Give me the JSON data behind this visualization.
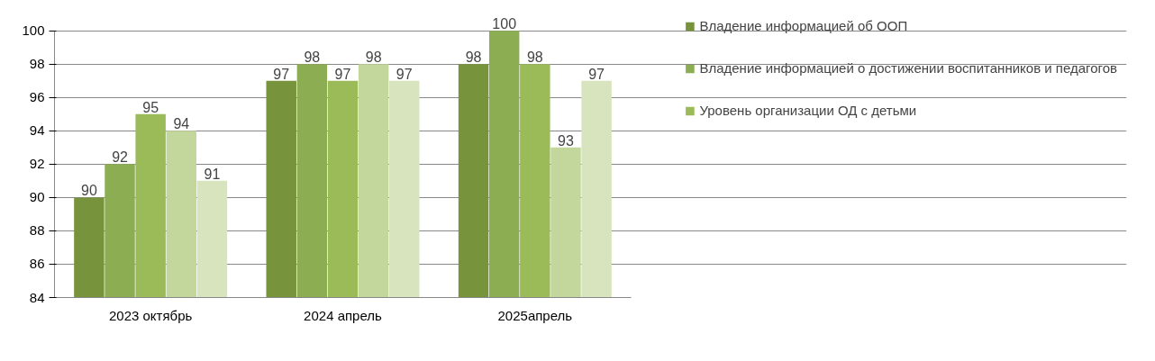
{
  "chart_data": {
    "type": "bar",
    "categories": [
      "2023 октябрь",
      "2024 апрель",
      "2025апрель"
    ],
    "series": [
      {
        "name": "Владение информацией об ООП",
        "color": "#77933c",
        "values": [
          90,
          97,
          98
        ]
      },
      {
        "name": "Владение информацией о достижении воспитанников и педагогов",
        "color": "#8cad52",
        "values": [
          92,
          98,
          100
        ]
      },
      {
        "name": "Уровень организации ОД с детьми",
        "color": "#9bbb59",
        "values": [
          95,
          97,
          98
        ]
      },
      {
        "color": "#c3d69b",
        "values": [
          94,
          98,
          93
        ]
      },
      {
        "color": "#d7e4bd",
        "values": [
          91,
          97,
          97
        ]
      }
    ],
    "ylim": [
      84,
      100
    ],
    "yticks": [
      84,
      86,
      88,
      90,
      92,
      94,
      96,
      98,
      100
    ],
    "grid": "y",
    "legend": "right",
    "data_labels": true
  }
}
